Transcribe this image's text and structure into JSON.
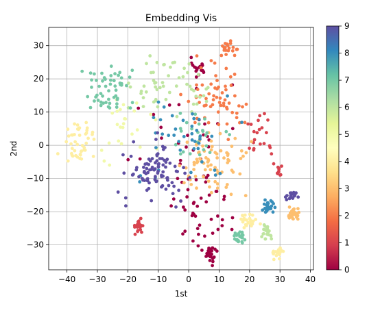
{
  "chart_data": {
    "type": "scatter",
    "title": "Embedding Vis",
    "xlabel": "1st",
    "ylabel": "2nd",
    "xlim": [
      -46,
      41
    ],
    "ylim": [
      -37.5,
      35.5
    ],
    "xticks": [
      -40,
      -30,
      -20,
      -10,
      0,
      10,
      20,
      30,
      40
    ],
    "yticks": [
      -30,
      -20,
      -10,
      0,
      10,
      20,
      30
    ],
    "grid": true,
    "colorbar": {
      "min": 0,
      "max": 9,
      "ticks": [
        0,
        1,
        2,
        3,
        4,
        5,
        6,
        7,
        8,
        9
      ],
      "colormap": "Spectral",
      "stops": [
        "#9e0142",
        "#d53e4f",
        "#f46d43",
        "#fdae61",
        "#fee08b",
        "#ffffbf",
        "#e6f598",
        "#abdda4",
        "#66c2a5",
        "#3288bd",
        "#5e4fa2"
      ]
    },
    "clusters": [
      {
        "label": 0,
        "center": [
          3,
          23
        ],
        "spread": [
          1.5,
          1.5
        ],
        "count": 18
      },
      {
        "label": 0,
        "center": [
          7,
          -33
        ],
        "spread": [
          1.0,
          1.5
        ],
        "count": 24
      },
      {
        "label": 0,
        "center": [
          4,
          -20
        ],
        "spread": [
          5,
          5
        ],
        "count": 40
      },
      {
        "label": 0,
        "center": [
          1,
          4
        ],
        "spread": [
          8,
          8
        ],
        "count": 30
      },
      {
        "label": 1,
        "center": [
          -16.5,
          -24.5
        ],
        "spread": [
          1.0,
          1.0
        ],
        "count": 22
      },
      {
        "label": 1,
        "center": [
          24,
          2
        ],
        "spread": [
          2.5,
          3.5
        ],
        "count": 22
      },
      {
        "label": 1,
        "center": [
          30,
          -8
        ],
        "spread": [
          0.5,
          0.7
        ],
        "count": 10
      },
      {
        "label": 2,
        "center": [
          13,
          29
        ],
        "spread": [
          1.4,
          1.2
        ],
        "count": 20
      },
      {
        "label": 2,
        "center": [
          10,
          14
        ],
        "spread": [
          5,
          5
        ],
        "count": 60
      },
      {
        "label": 3,
        "center": [
          7,
          -6
        ],
        "spread": [
          5.5,
          4.5
        ],
        "count": 75
      },
      {
        "label": 3,
        "center": [
          34,
          -21
        ],
        "spread": [
          1.2,
          1.2
        ],
        "count": 26
      },
      {
        "label": 4,
        "center": [
          20,
          -23
        ],
        "spread": [
          1.4,
          1.4
        ],
        "count": 24
      },
      {
        "label": 4,
        "center": [
          -36,
          1
        ],
        "spread": [
          3,
          3
        ],
        "count": 45
      },
      {
        "label": 4,
        "center": [
          29,
          -32.5
        ],
        "spread": [
          1.0,
          0.8
        ],
        "count": 18
      },
      {
        "label": 5,
        "center": [
          -22,
          5
        ],
        "spread": [
          5,
          6
        ],
        "count": 25
      },
      {
        "label": 6,
        "center": [
          26,
          -26
        ],
        "spread": [
          1.0,
          1.3
        ],
        "count": 22
      },
      {
        "label": 6,
        "center": [
          -6,
          18
        ],
        "spread": [
          5.5,
          5
        ],
        "count": 55
      },
      {
        "label": 7,
        "center": [
          17,
          -27.5
        ],
        "spread": [
          1.0,
          1.2
        ],
        "count": 22
      },
      {
        "label": 7,
        "center": [
          -26,
          16
        ],
        "spread": [
          4.5,
          4
        ],
        "count": 55
      },
      {
        "label": 7,
        "center": [
          4,
          3
        ],
        "spread": [
          5,
          4
        ],
        "count": 25
      },
      {
        "label": 8,
        "center": [
          26,
          -18.5
        ],
        "spread": [
          0.9,
          1.2
        ],
        "count": 24
      },
      {
        "label": 8,
        "center": [
          0,
          3
        ],
        "spread": [
          9,
          7
        ],
        "count": 40
      },
      {
        "label": 9,
        "center": [
          -11,
          -8
        ],
        "spread": [
          5.5,
          4
        ],
        "count": 90
      },
      {
        "label": 9,
        "center": [
          34,
          -15.5
        ],
        "spread": [
          1.0,
          0.7
        ],
        "count": 20
      }
    ]
  }
}
